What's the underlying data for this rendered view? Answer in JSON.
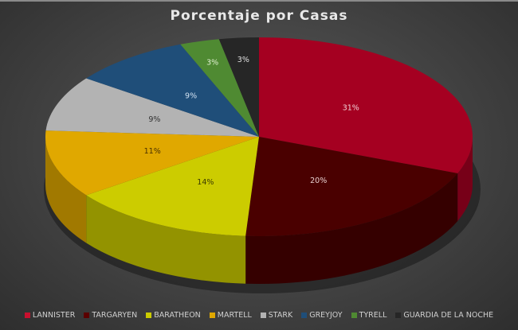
{
  "chart_data": {
    "type": "pie",
    "variant": "3d",
    "title": "Porcentaje por Casas",
    "categories": [
      "LANNISTER",
      "TARGARYEN",
      "BARATHEON",
      "MARTELL",
      "STARK",
      "GREYJOY",
      "TYRELL",
      "GUARDIA DE LA NOCHE"
    ],
    "values": [
      31,
      20,
      14,
      11,
      9,
      9,
      3,
      3
    ],
    "labels": [
      "31%",
      "20%",
      "14%",
      "11%",
      "9%",
      "9%",
      "3%",
      "3%"
    ],
    "colors": [
      "#a50021",
      "#4a0000",
      "#cccc00",
      "#e0a800",
      "#b3b3b3",
      "#1f4e79",
      "#4f8a32",
      "#262626"
    ],
    "label_colors": [
      "#f2d0d6",
      "#e8d0d0",
      "#3a3a00",
      "#4a3000",
      "#333333",
      "#d0e0f0",
      "#e0f0d0",
      "#e0e0e0"
    ],
    "legend_position": "bottom",
    "unit": "%"
  },
  "legend": {
    "items": [
      {
        "label": "LANNISTER",
        "color": "#c8102e"
      },
      {
        "label": "TARGARYEN",
        "color": "#5a0000"
      },
      {
        "label": "BARATHEON",
        "color": "#cccc00"
      },
      {
        "label": "MARTELL",
        "color": "#e0a800"
      },
      {
        "label": "STARK",
        "color": "#b3b3b3"
      },
      {
        "label": "GREYJOY",
        "color": "#1f4e79"
      },
      {
        "label": "TYRELL",
        "color": "#4f8a32"
      },
      {
        "label": "GUARDIA DE LA NOCHE",
        "color": "#262626"
      }
    ]
  }
}
